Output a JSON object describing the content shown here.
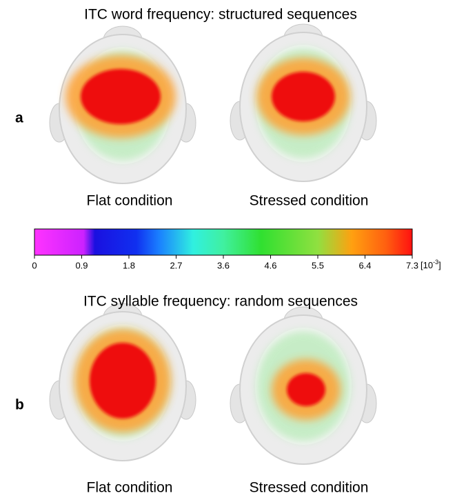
{
  "panels": [
    {
      "label": "a",
      "title": "ITC word frequency: structured sequences",
      "maps": [
        {
          "caption": "Flat condition"
        },
        {
          "caption": "Stressed condition"
        }
      ]
    },
    {
      "label": "b",
      "title": "ITC syllable frequency: random sequences",
      "maps": [
        {
          "caption": "Flat condition"
        },
        {
          "caption": "Stressed condition"
        }
      ]
    }
  ],
  "colorbar": {
    "ticks": [
      0,
      0.9,
      1.8,
      2.7,
      3.6,
      4.6,
      5.5,
      6.4,
      7.3
    ],
    "unit_prefix": "[10",
    "unit_exponent": "-3",
    "unit_suffix": "]"
  }
}
